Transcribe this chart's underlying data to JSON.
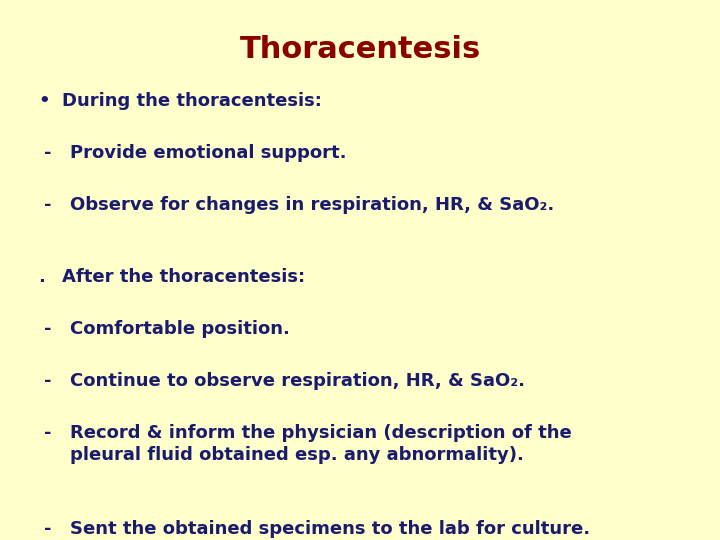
{
  "title": "Thoracentesis",
  "title_color": "#8B0000",
  "title_fontsize": 22,
  "background_color": "#FFFFCC",
  "text_color": "#1a1a6e",
  "body_fontsize": 13,
  "lines": [
    {
      "indent": 0,
      "bullet": "•",
      "text": "During the thoracentesis:",
      "extra_space_after": false
    },
    {
      "indent": 1,
      "bullet": "-",
      "text": "Provide emotional support.",
      "extra_space_after": false
    },
    {
      "indent": 1,
      "bullet": "-",
      "text": "Observe for changes in respiration, HR, & SaO₂.",
      "extra_space_after": true
    },
    {
      "indent": 0,
      "bullet": ".",
      "text": "After the thoracentesis:",
      "extra_space_after": false
    },
    {
      "indent": 1,
      "bullet": "-",
      "text": "Comfortable position.",
      "extra_space_after": false
    },
    {
      "indent": 1,
      "bullet": "-",
      "text": "Continue to observe respiration, HR, & SaO₂.",
      "extra_space_after": false
    },
    {
      "indent": 1,
      "bullet": "-",
      "text": "Record & inform the physician (description of the\npleural fluid obtained esp. any abnormality).",
      "extra_space_after": false
    },
    {
      "indent": 1,
      "bullet": "-",
      "text": "Sent the obtained specimens to the lab for culture.",
      "extra_space_after": false
    }
  ]
}
